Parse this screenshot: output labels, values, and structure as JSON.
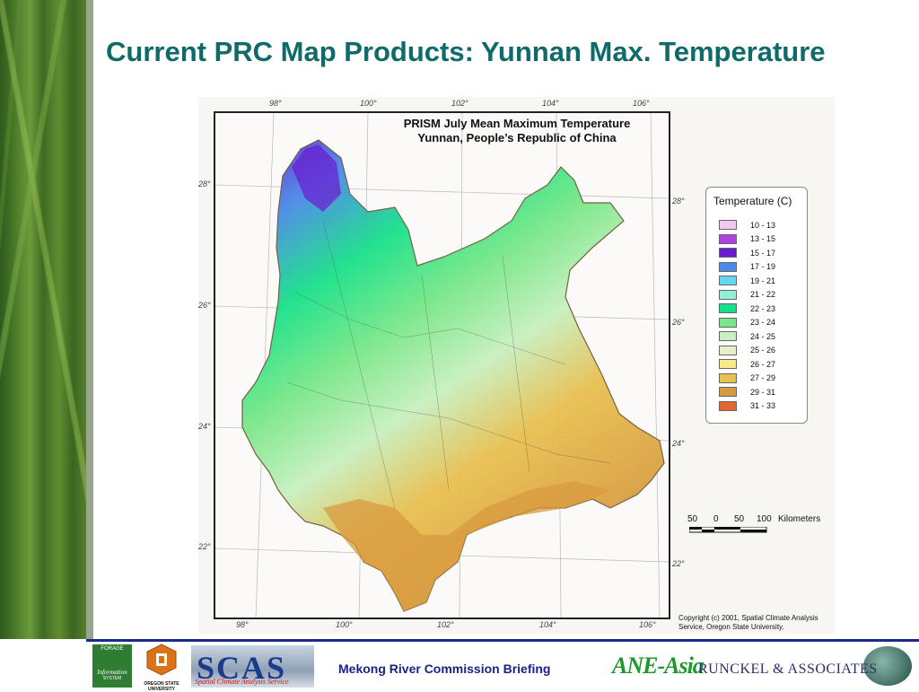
{
  "slide": {
    "title": "Current PRC Map Products: Yunnan Max. Temperature"
  },
  "map": {
    "title_line1": "PRISM July Mean Maximum Temperature",
    "title_line2": "Yunnan, People’s Republic of China",
    "top_ticks": [
      "98°",
      "100°",
      "102°",
      "104°",
      "106°"
    ],
    "bottom_ticks": [
      "98°",
      "100°",
      "102°",
      "104°",
      "106°"
    ],
    "left_ticks": [
      "28°",
      "26°",
      "24°",
      "22°"
    ],
    "right_ticks": [
      "28°",
      "26°",
      "24°",
      "22°"
    ],
    "legend": {
      "title": "Temperature (C)",
      "items": [
        {
          "label": "10 - 13",
          "color": "#f0c8f0"
        },
        {
          "label": "13 - 15",
          "color": "#b040e0"
        },
        {
          "label": "15 - 17",
          "color": "#6a1ad0"
        },
        {
          "label": "17 - 19",
          "color": "#4a8ae8"
        },
        {
          "label": "19 - 21",
          "color": "#60d8f0"
        },
        {
          "label": "21 - 22",
          "color": "#90f0d8"
        },
        {
          "label": "22 - 23",
          "color": "#18e08a"
        },
        {
          "label": "23 - 24",
          "color": "#78e888"
        },
        {
          "label": "24 - 25",
          "color": "#c8f0c0"
        },
        {
          "label": "25 - 26",
          "color": "#e6f0c8"
        },
        {
          "label": "26 - 27",
          "color": "#f8e888"
        },
        {
          "label": "27 - 29",
          "color": "#e8c050"
        },
        {
          "label": "29 - 31",
          "color": "#d89a40"
        },
        {
          "label": "31 - 33",
          "color": "#e06830"
        }
      ]
    },
    "scale": {
      "labels": [
        "50",
        "0",
        "50",
        "100"
      ],
      "unit": "Kilometers"
    },
    "copyright": "Copyright (c) 2001, Spatial Climate Analysis Service, Oregon State University."
  },
  "footer": {
    "center_text": "Mekong River Commission Briefing",
    "anc_text": "ANE-Asia",
    "runckel_text": "RUNCKEL & ASSOCIATES",
    "forage_lines": [
      "FORAGE",
      "Information",
      "SYSTEM"
    ],
    "osu_text": "OREGON STATE UNIVERSITY",
    "scas_text": "SCAS",
    "scas_sub": "Spatial Climate Analysis Service"
  }
}
